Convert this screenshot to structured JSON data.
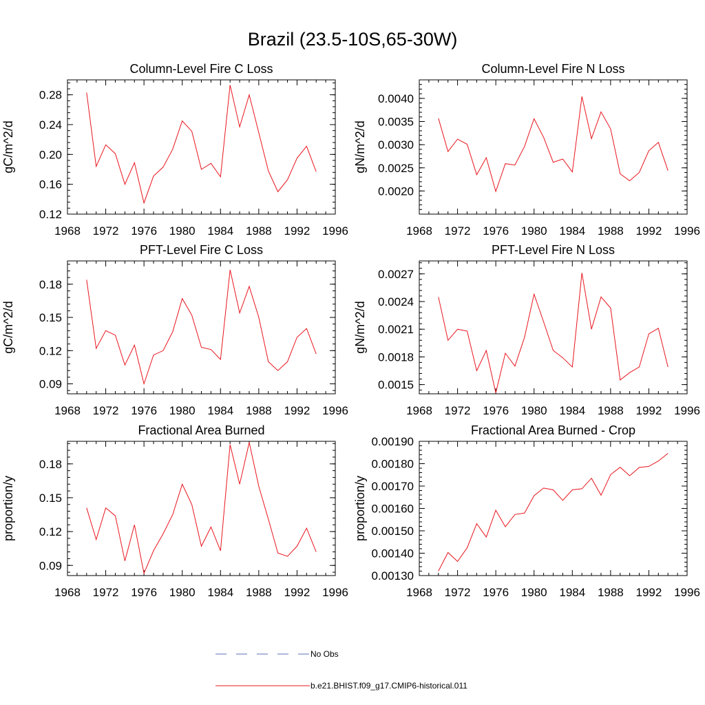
{
  "figure": {
    "title": "Brazil (23.5-10S,65-30W)",
    "series_color": "#e8141c",
    "obs_color": "#5a6fb4"
  },
  "legend": {
    "obs_label": "No Obs",
    "model_label": "b.e21.BHIST.f09_g17.CMIP6-historical.011"
  },
  "chart_data": [
    {
      "type": "line",
      "title": "Column-Level Fire C Loss",
      "ylabel": "gC/m^2/d",
      "xlim": [
        1968,
        1996
      ],
      "xticks": [
        "1968",
        "1972",
        "1976",
        "1980",
        "1984",
        "1988",
        "1992",
        "1996"
      ],
      "ylim": [
        0.12,
        0.3
      ],
      "yticks": [
        "0.12",
        "0.16",
        "0.20",
        "0.24",
        "0.28"
      ],
      "x": [
        1970,
        1971,
        1972,
        1973,
        1974,
        1975,
        1976,
        1977,
        1978,
        1979,
        1980,
        1981,
        1982,
        1983,
        1984,
        1985,
        1986,
        1987,
        1988,
        1989,
        1990,
        1991,
        1992,
        1993,
        1994
      ],
      "series": [
        {
          "values": [
            0.283,
            0.184,
            0.213,
            0.201,
            0.16,
            0.189,
            0.135,
            0.171,
            0.183,
            0.207,
            0.245,
            0.231,
            0.18,
            0.188,
            0.17,
            0.293,
            0.237,
            0.28,
            0.229,
            0.178,
            0.15,
            0.166,
            0.195,
            0.211,
            0.177
          ]
        }
      ]
    },
    {
      "type": "line",
      "title": "Column-Level Fire N Loss",
      "ylabel": "gN/m^2/d",
      "xlim": [
        1968,
        1996
      ],
      "xticks": [
        "1968",
        "1972",
        "1976",
        "1980",
        "1984",
        "1988",
        "1992",
        "1996"
      ],
      "ylim": [
        0.0015,
        0.0044
      ],
      "yticks": [
        "0.0020",
        "0.0025",
        "0.0030",
        "0.0035",
        "0.0040"
      ],
      "x": [
        1970,
        1971,
        1972,
        1973,
        1974,
        1975,
        1976,
        1977,
        1978,
        1979,
        1980,
        1981,
        1982,
        1983,
        1984,
        1985,
        1986,
        1987,
        1988,
        1989,
        1990,
        1991,
        1992,
        1993,
        1994
      ],
      "series": [
        {
          "values": [
            0.00357,
            0.00285,
            0.00312,
            0.00301,
            0.00235,
            0.00272,
            0.00199,
            0.00259,
            0.00256,
            0.00296,
            0.00356,
            0.00316,
            0.00262,
            0.00269,
            0.00241,
            0.00404,
            0.00313,
            0.00371,
            0.00334,
            0.00237,
            0.00222,
            0.0024,
            0.00287,
            0.00305,
            0.00244
          ]
        }
      ]
    },
    {
      "type": "line",
      "title": "PFT-Level Fire C Loss",
      "ylabel": "gC/m^2/d",
      "xlim": [
        1968,
        1996
      ],
      "xticks": [
        "1968",
        "1972",
        "1976",
        "1980",
        "1984",
        "1988",
        "1992",
        "1996"
      ],
      "ylim": [
        0.081,
        0.201
      ],
      "yticks": [
        "0.09",
        "0.12",
        "0.15",
        "0.18"
      ],
      "x": [
        1970,
        1971,
        1972,
        1973,
        1974,
        1975,
        1976,
        1977,
        1978,
        1979,
        1980,
        1981,
        1982,
        1983,
        1984,
        1985,
        1986,
        1987,
        1988,
        1989,
        1990,
        1991,
        1992,
        1993,
        1994
      ],
      "series": [
        {
          "values": [
            0.184,
            0.122,
            0.138,
            0.134,
            0.107,
            0.125,
            0.09,
            0.116,
            0.12,
            0.137,
            0.167,
            0.152,
            0.123,
            0.121,
            0.112,
            0.193,
            0.154,
            0.178,
            0.15,
            0.11,
            0.102,
            0.11,
            0.132,
            0.14,
            0.117
          ]
        }
      ]
    },
    {
      "type": "line",
      "title": "PFT-Level Fire N Loss",
      "ylabel": "gN/m^2/d",
      "xlim": [
        1968,
        1996
      ],
      "xticks": [
        "1968",
        "1972",
        "1976",
        "1980",
        "1984",
        "1988",
        "1992",
        "1996"
      ],
      "ylim": [
        0.0014,
        0.00284
      ],
      "yticks": [
        "0.0015",
        "0.0018",
        "0.0021",
        "0.0024",
        "0.0027"
      ],
      "x": [
        1970,
        1971,
        1972,
        1973,
        1974,
        1975,
        1976,
        1977,
        1978,
        1979,
        1980,
        1981,
        1982,
        1983,
        1984,
        1985,
        1986,
        1987,
        1988,
        1989,
        1990,
        1991,
        1992,
        1993,
        1994
      ],
      "series": [
        {
          "values": [
            0.00245,
            0.00198,
            0.0021,
            0.00208,
            0.00165,
            0.00187,
            0.00141,
            0.00184,
            0.0017,
            0.00201,
            0.00248,
            0.00218,
            0.00187,
            0.00179,
            0.00169,
            0.00271,
            0.0021,
            0.00245,
            0.00233,
            0.00155,
            0.00163,
            0.00169,
            0.00205,
            0.00211,
            0.00169
          ]
        }
      ]
    },
    {
      "type": "line",
      "title": "Fractional Area Burned",
      "ylabel": "proportion/y",
      "xlim": [
        1968,
        1996
      ],
      "xticks": [
        "1968",
        "1972",
        "1976",
        "1980",
        "1984",
        "1988",
        "1992",
        "1996"
      ],
      "ylim": [
        0.081,
        0.2
      ],
      "yticks": [
        "0.09",
        "0.12",
        "0.15",
        "0.18"
      ],
      "x": [
        1970,
        1971,
        1972,
        1973,
        1974,
        1975,
        1976,
        1977,
        1978,
        1979,
        1980,
        1981,
        1982,
        1983,
        1984,
        1985,
        1986,
        1987,
        1988,
        1989,
        1990,
        1991,
        1992,
        1993,
        1994
      ],
      "series": [
        {
          "values": [
            0.141,
            0.113,
            0.141,
            0.134,
            0.094,
            0.126,
            0.083,
            0.103,
            0.118,
            0.135,
            0.162,
            0.144,
            0.107,
            0.124,
            0.103,
            0.197,
            0.162,
            0.199,
            0.16,
            0.131,
            0.101,
            0.098,
            0.107,
            0.123,
            0.102
          ]
        }
      ]
    },
    {
      "type": "line",
      "title": "Fractional Area Burned - Crop",
      "ylabel": "proportion/y",
      "xlim": [
        1968,
        1996
      ],
      "xticks": [
        "1968",
        "1972",
        "1976",
        "1980",
        "1984",
        "1988",
        "1992",
        "1996"
      ],
      "ylim": [
        0.0013,
        0.0019
      ],
      "yticks": [
        "0.00130",
        "0.00140",
        "0.00150",
        "0.00160",
        "0.00170",
        "0.00180",
        "0.00190"
      ],
      "x": [
        1970,
        1971,
        1972,
        1973,
        1974,
        1975,
        1976,
        1977,
        1978,
        1979,
        1980,
        1981,
        1982,
        1983,
        1984,
        1985,
        1986,
        1987,
        1988,
        1989,
        1990,
        1991,
        1992,
        1993,
        1994
      ],
      "series": [
        {
          "values": [
            0.00132,
            0.001403,
            0.001363,
            0.001424,
            0.001532,
            0.001472,
            0.001592,
            0.001518,
            0.001573,
            0.001579,
            0.001657,
            0.001691,
            0.001683,
            0.001636,
            0.001683,
            0.001688,
            0.001735,
            0.001659,
            0.001751,
            0.001784,
            0.001746,
            0.001783,
            0.001788,
            0.001812,
            0.001846
          ]
        }
      ]
    }
  ]
}
